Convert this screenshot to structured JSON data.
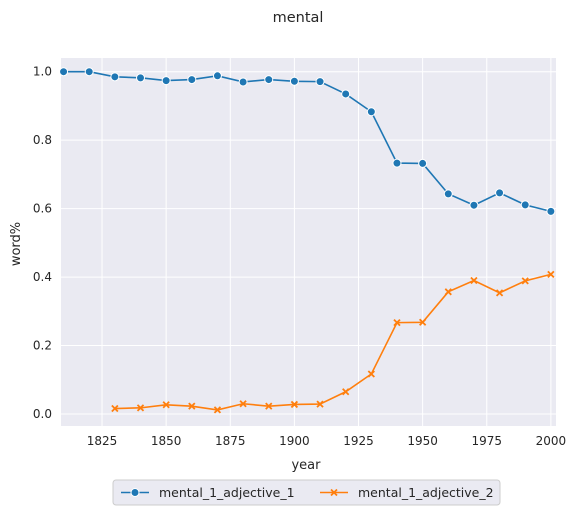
{
  "chart_data": {
    "type": "line",
    "title": "mental",
    "xlabel": "year",
    "ylabel": "word%",
    "xlim": [
      1809,
      2002
    ],
    "ylim": [
      -0.035,
      1.04
    ],
    "xticks": [
      1825,
      1850,
      1875,
      1900,
      1925,
      1950,
      1975,
      2000
    ],
    "xtick_labels": [
      "1825",
      "1850",
      "1875",
      "1900",
      "1925",
      "1950",
      "1975",
      "2000"
    ],
    "yticks": [
      0.0,
      0.2,
      0.4,
      0.6,
      0.8,
      1.0
    ],
    "ytick_labels": [
      "0.0",
      "0.2",
      "0.4",
      "0.6",
      "0.8",
      "1.0"
    ],
    "grid": true,
    "legend_position": "bottom-center",
    "series": [
      {
        "name": "mental_1_adjective_1",
        "color": "#1f77b4",
        "marker": "circle",
        "x": [
          1810,
          1820,
          1830,
          1840,
          1850,
          1860,
          1870,
          1880,
          1890,
          1900,
          1910,
          1920,
          1930,
          1940,
          1950,
          1960,
          1970,
          1980,
          1990,
          2000
        ],
        "y": [
          1.0,
          1.0,
          0.985,
          0.982,
          0.974,
          0.977,
          0.988,
          0.97,
          0.977,
          0.972,
          0.971,
          0.935,
          0.883,
          0.733,
          0.732,
          0.643,
          0.61,
          0.646,
          0.611,
          0.592
        ]
      },
      {
        "name": "mental_1_adjective_2",
        "color": "#ff7f0e",
        "marker": "x",
        "x": [
          1830,
          1840,
          1850,
          1860,
          1870,
          1880,
          1890,
          1900,
          1910,
          1920,
          1930,
          1940,
          1950,
          1960,
          1970,
          1980,
          1990,
          2000
        ],
        "y": [
          0.016,
          0.018,
          0.027,
          0.023,
          0.012,
          0.03,
          0.023,
          0.028,
          0.029,
          0.065,
          0.117,
          0.267,
          0.268,
          0.357,
          0.39,
          0.354,
          0.389,
          0.408
        ]
      }
    ]
  }
}
